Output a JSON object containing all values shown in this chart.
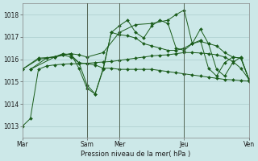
{
  "background_color": "#cce8e8",
  "grid_color": "#aacccc",
  "line_color": "#1a5c1a",
  "marker_color": "#1a5c1a",
  "xlabel": "Pression niveau de la mer( hPa )",
  "ylim": [
    1012.5,
    1018.5
  ],
  "yticks": [
    1013,
    1014,
    1015,
    1016,
    1017,
    1018
  ],
  "xtick_labels": [
    "Mar",
    "Sam",
    "Mer",
    "Jeu",
    "Ven"
  ],
  "xtick_positions": [
    0,
    48,
    72,
    120,
    168
  ],
  "vlines": [
    48,
    72,
    120,
    168
  ],
  "x_total": 168,
  "series": [
    {
      "x": [
        0,
        6,
        12,
        18,
        24,
        30,
        36,
        42,
        48,
        54,
        60,
        66,
        72,
        78,
        84,
        90,
        96,
        102,
        108,
        114,
        120,
        126,
        132,
        138,
        144,
        150,
        156,
        162,
        168
      ],
      "y": [
        1013.0,
        1013.35,
        1015.55,
        1015.7,
        1015.75,
        1015.78,
        1015.8,
        1015.8,
        1015.82,
        1015.85,
        1015.88,
        1015.9,
        1015.95,
        1016.0,
        1016.05,
        1016.1,
        1016.15,
        1016.18,
        1016.2,
        1016.25,
        1016.3,
        1016.3,
        1016.28,
        1016.25,
        1016.2,
        1016.1,
        1015.9,
        1015.6,
        1015.1
      ]
    },
    {
      "x": [
        0,
        12,
        24,
        30,
        36,
        42,
        48,
        54,
        60,
        66,
        72,
        78,
        84,
        90,
        96,
        102,
        108,
        114,
        120,
        126,
        132,
        138,
        144,
        150,
        156,
        162,
        168
      ],
      "y": [
        1015.55,
        1016.05,
        1016.1,
        1016.25,
        1016.2,
        1015.85,
        1015.8,
        1015.75,
        1015.6,
        1015.6,
        1015.55,
        1015.55,
        1015.55,
        1015.55,
        1015.55,
        1015.5,
        1015.45,
        1015.4,
        1015.35,
        1015.3,
        1015.25,
        1015.2,
        1015.15,
        1015.1,
        1015.08,
        1015.05,
        1015.02
      ]
    },
    {
      "x": [
        0,
        12,
        24,
        30,
        36,
        42,
        48,
        54,
        60,
        66,
        72,
        78,
        84,
        90,
        96,
        102,
        108,
        114,
        120,
        126,
        132,
        138,
        144,
        150,
        156,
        162,
        168
      ],
      "y": [
        1015.55,
        1016.0,
        1016.1,
        1016.2,
        1016.25,
        1015.6,
        1014.7,
        1014.45,
        1015.55,
        1017.2,
        1017.1,
        1017.05,
        1016.95,
        1016.7,
        1016.6,
        1016.5,
        1016.4,
        1016.4,
        1016.5,
        1016.7,
        1016.8,
        1016.7,
        1016.6,
        1016.3,
        1016.1,
        1016.05,
        1015.1
      ]
    },
    {
      "x": [
        6,
        18,
        30,
        36,
        42,
        48,
        54,
        60,
        66,
        72,
        78,
        84,
        90,
        96,
        102,
        108,
        114,
        120,
        126,
        132,
        138,
        144,
        150,
        156,
        162,
        168
      ],
      "y": [
        1015.55,
        1016.05,
        1016.2,
        1016.1,
        1015.85,
        1014.85,
        1014.45,
        1015.6,
        1017.2,
        1017.5,
        1017.75,
        1017.2,
        1016.95,
        1017.5,
        1017.75,
        1017.6,
        1016.5,
        1016.4,
        1016.7,
        1016.85,
        1015.6,
        1015.25,
        1015.85,
        1016.1,
        1016.05,
        1015.1
      ]
    },
    {
      "x": [
        6,
        24,
        36,
        42,
        48,
        60,
        72,
        84,
        96,
        108,
        114,
        120,
        126,
        132,
        138,
        144,
        150,
        156,
        162,
        168
      ],
      "y": [
        1015.55,
        1016.1,
        1016.25,
        1016.2,
        1016.1,
        1016.3,
        1017.2,
        1017.55,
        1017.6,
        1017.75,
        1018.0,
        1018.2,
        1016.7,
        1017.35,
        1016.7,
        1015.55,
        1015.25,
        1015.85,
        1016.1,
        1015.1
      ]
    }
  ]
}
